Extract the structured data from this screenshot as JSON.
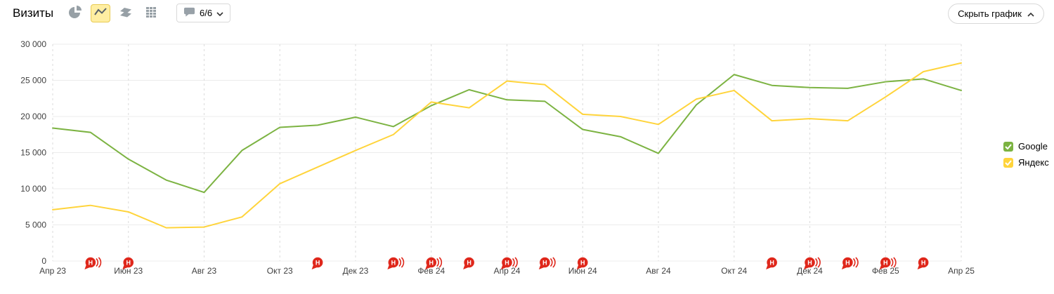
{
  "header": {
    "title": "Визиты",
    "annotations_dropdown": "6/6",
    "hide_chart_button": "Скрыть график"
  },
  "toolbar_icons": [
    "pie-chart",
    "line-chart",
    "stacked-area-chart",
    "column-chart",
    "comments-dropdown"
  ],
  "selected_chart_type": "line-chart",
  "legend": {
    "items": [
      {
        "label": "Google",
        "color": "#7cb342"
      },
      {
        "label": "Яндекс",
        "color": "#ffd43b"
      }
    ]
  },
  "chart_data": {
    "type": "line",
    "title": "Визиты",
    "x": [
      "Апр 23",
      "Май 23",
      "Июн 23",
      "Июл 23",
      "Авг 23",
      "Сен 23",
      "Окт 23",
      "Ноя 23",
      "Дек 23",
      "Янв 24",
      "Фев 24",
      "Мар 24",
      "Апр 24",
      "Май 24",
      "Июн 24",
      "Июл 24",
      "Авг 24",
      "Сен 24",
      "Окт 24",
      "Ноя 24",
      "Дек 24",
      "Янв 25",
      "Фев 25",
      "Мар 25",
      "Апр 25"
    ],
    "x_tick_labels": [
      "Апр 23",
      "Июн 23",
      "Авг 23",
      "Окт 23",
      "Дек 23",
      "Фев 24",
      "Апр 24",
      "Июн 24",
      "Авг 24",
      "Окт 24",
      "Дек 24",
      "Фев 25",
      "Апр 25"
    ],
    "series": [
      {
        "name": "Google",
        "color": "#7cb342",
        "values": [
          18400,
          17800,
          14100,
          11200,
          9500,
          15300,
          18500,
          18800,
          19900,
          18600,
          21500,
          23700,
          22300,
          22100,
          18200,
          17200,
          14900,
          21600,
          25800,
          24300,
          24000,
          23900,
          24800,
          25200,
          23600
        ]
      },
      {
        "name": "Яндекс",
        "color": "#ffd43b",
        "values": [
          7100,
          7700,
          6800,
          4600,
          4700,
          6100,
          10700,
          13000,
          15300,
          17500,
          22000,
          21200,
          24900,
          24400,
          20300,
          20000,
          18900,
          22400,
          23600,
          19400,
          19700,
          19400,
          22700,
          26200,
          27400
        ]
      }
    ],
    "ylim": [
      0,
      30000
    ],
    "yticks": [
      0,
      5000,
      10000,
      15000,
      20000,
      25000,
      30000
    ],
    "ytick_labels": [
      "0",
      "5 000",
      "10 000",
      "15 000",
      "20 000",
      "25 000",
      "30 000"
    ],
    "grid": true,
    "legend_position": "right",
    "annotation_glyph": "Н",
    "annotation_color": "#df271b",
    "annotations": [
      {
        "x": "Май 23",
        "count": 2
      },
      {
        "x": "Июн 23",
        "count": 1
      },
      {
        "x": "Ноя 23",
        "count": 1
      },
      {
        "x": "Янв 24",
        "count": 2
      },
      {
        "x": "Фев 24",
        "count": 2
      },
      {
        "x": "Мар 24",
        "count": 1
      },
      {
        "x": "Апр 24",
        "count": 2
      },
      {
        "x": "Май 24",
        "count": 2
      },
      {
        "x": "Июн 24",
        "count": 1
      },
      {
        "x": "Ноя 24",
        "count": 1
      },
      {
        "x": "Дек 24",
        "count": 2
      },
      {
        "x": "Янв 25",
        "count": 2
      },
      {
        "x": "Фев 25",
        "count": 2
      },
      {
        "x": "Мар 25",
        "count": 1
      }
    ]
  }
}
